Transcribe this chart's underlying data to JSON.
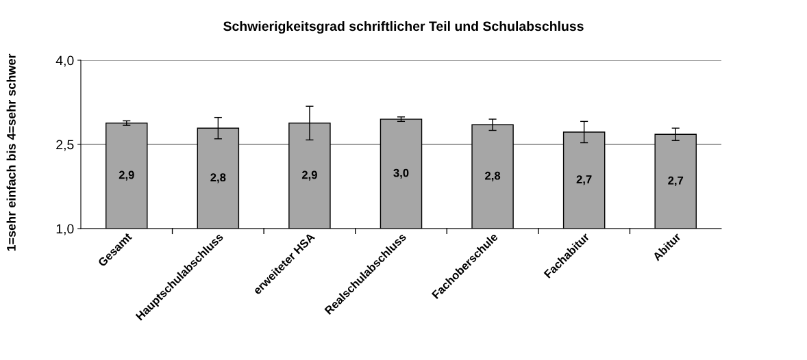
{
  "chart_data": {
    "type": "bar",
    "title": "Schwierigkeitsgrad schriftlicher Teil und Schulabschluss",
    "ylabel": "1=sehr einfach bis 4=sehr schwer",
    "categories": [
      "Gesamt",
      "Hauptschulabschluss",
      "erweiteter HSA",
      "Realschulabschluss",
      "Fachoberschule",
      "Fachabitur",
      "Abitur"
    ],
    "values": [
      2.88,
      2.79,
      2.88,
      2.95,
      2.85,
      2.72,
      2.68
    ],
    "errors": [
      0.04,
      0.19,
      0.3,
      0.04,
      0.1,
      0.19,
      0.11
    ],
    "value_labels": [
      "2,9",
      "2,8",
      "2,9",
      "3,0",
      "2,8",
      "2,7",
      "2,7"
    ],
    "color": "#a6a6a6",
    "ylim": [
      1,
      4
    ],
    "yticks": [
      {
        "value": 1,
        "label": "1,0"
      },
      {
        "value": 2.5,
        "label": "2,5"
      },
      {
        "value": 4,
        "label": "4,0"
      }
    ],
    "grid": "y"
  }
}
